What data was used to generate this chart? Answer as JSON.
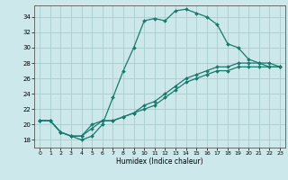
{
  "title": "",
  "xlabel": "Humidex (Indice chaleur)",
  "background_color": "#cce8ea",
  "grid_color": "#aacccc",
  "line_color": "#1a7a6e",
  "xlim": [
    -0.5,
    23.5
  ],
  "ylim": [
    17,
    35.5
  ],
  "xticks": [
    0,
    1,
    2,
    3,
    4,
    5,
    6,
    7,
    8,
    9,
    10,
    11,
    12,
    13,
    14,
    15,
    16,
    17,
    18,
    19,
    20,
    21,
    22,
    23
  ],
  "yticks": [
    18,
    20,
    22,
    24,
    26,
    28,
    30,
    32,
    34
  ],
  "series": [
    {
      "x": [
        0,
        1,
        2,
        3,
        4,
        5,
        6,
        7,
        8,
        9,
        10,
        11,
        12,
        13,
        14,
        15,
        16,
        17,
        18,
        19,
        20,
        21,
        22,
        23
      ],
      "y": [
        20.5,
        20.5,
        19.0,
        18.5,
        18.0,
        18.5,
        20.0,
        23.5,
        27.0,
        30.0,
        33.5,
        33.8,
        33.5,
        34.8,
        35.0,
        34.5,
        34.0,
        33.0,
        30.5,
        30.0,
        28.5,
        28.0,
        27.5,
        27.5
      ]
    },
    {
      "x": [
        0,
        1,
        2,
        3,
        4,
        5,
        6,
        7,
        8,
        9,
        10,
        11,
        12,
        13,
        14,
        15,
        16,
        17,
        18,
        19,
        20,
        21,
        22,
        23
      ],
      "y": [
        20.5,
        20.5,
        19.0,
        18.5,
        18.5,
        20.0,
        20.5,
        20.5,
        21.0,
        21.5,
        22.0,
        22.5,
        23.5,
        24.5,
        25.5,
        26.0,
        26.5,
        27.0,
        27.0,
        27.5,
        27.5,
        27.5,
        27.5,
        27.5
      ]
    },
    {
      "x": [
        0,
        1,
        2,
        3,
        4,
        5,
        6,
        7,
        8,
        9,
        10,
        11,
        12,
        13,
        14,
        15,
        16,
        17,
        18,
        19,
        20,
        21,
        22,
        23
      ],
      "y": [
        20.5,
        20.5,
        19.0,
        18.5,
        18.5,
        19.5,
        20.5,
        20.5,
        21.0,
        21.5,
        22.5,
        23.0,
        24.0,
        25.0,
        26.0,
        26.5,
        27.0,
        27.5,
        27.5,
        28.0,
        28.0,
        28.0,
        28.0,
        27.5
      ]
    }
  ]
}
